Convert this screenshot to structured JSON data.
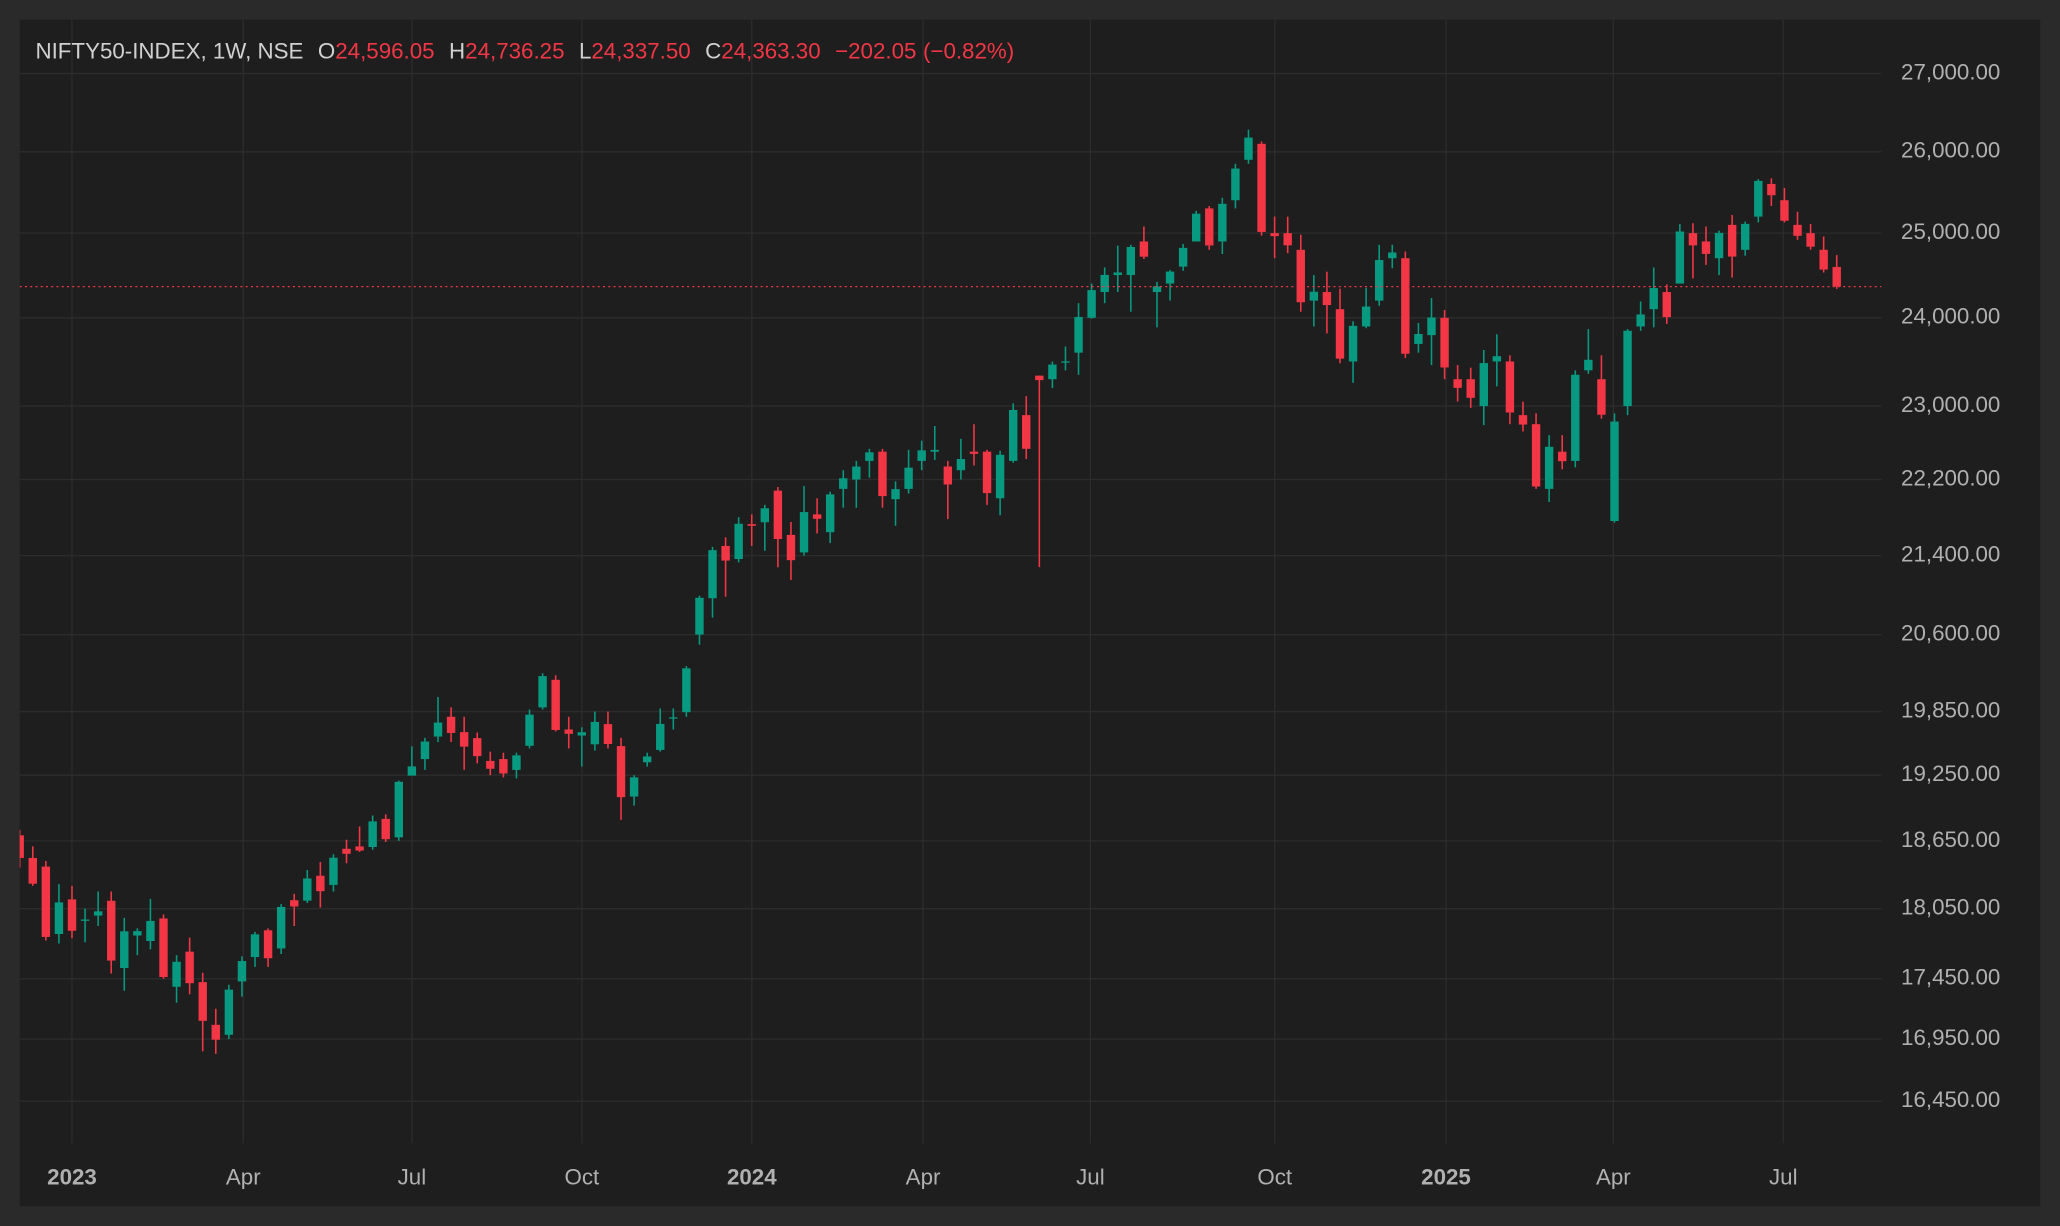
{
  "chart_data": {
    "type": "candlestick",
    "log_scale": true,
    "grid": true,
    "up_color": "#089981",
    "down_color": "#f23645",
    "legend": {
      "symbol": "NIFTY50-INDEX, 1W, NSE",
      "items": [
        {
          "key": "O",
          "value": 24596.05,
          "label": "24,596.05"
        },
        {
          "key": "H",
          "value": 24736.25,
          "label": "24,736.25"
        },
        {
          "key": "L",
          "value": 24337.5,
          "label": "24,337.50"
        },
        {
          "key": "C",
          "value": 24363.3,
          "label": "24,363.30"
        }
      ],
      "change": {
        "value": -202.05,
        "label": "−202.05"
      },
      "change_pct": {
        "value": -0.82,
        "label": "(−0.82%)"
      }
    },
    "ylim": [
      16120,
      27710
    ],
    "yticks": [
      {
        "value": 27000,
        "label": "27,000.00"
      },
      {
        "value": 26000,
        "label": "26,000.00"
      },
      {
        "value": 25000,
        "label": "25,000.00"
      },
      {
        "value": 24000,
        "label": "24,000.00"
      },
      {
        "value": 23000,
        "label": "23,000.00"
      },
      {
        "value": 22200,
        "label": "22,200.00"
      },
      {
        "value": 21400,
        "label": "21,400.00"
      },
      {
        "value": 20600,
        "label": "20,600.00"
      },
      {
        "value": 19850,
        "label": "19,850.00"
      },
      {
        "value": 19250,
        "label": "19,250.00"
      },
      {
        "value": 18650,
        "label": "18,650.00"
      },
      {
        "value": 18050,
        "label": "18,050.00"
      },
      {
        "value": 17450,
        "label": "17,450.00"
      },
      {
        "value": 16950,
        "label": "16,950.00"
      },
      {
        "value": 16450,
        "label": "16,450.00"
      }
    ],
    "xlim": [
      0,
      142.4
    ],
    "xticks": [
      {
        "value": 4.0,
        "label": "2023"
      },
      {
        "value": 17.1,
        "label": "Apr"
      },
      {
        "value": 30.0,
        "label": "Jul"
      },
      {
        "value": 43.0,
        "label": "Oct"
      },
      {
        "value": 56.0,
        "label": "2024"
      },
      {
        "value": 69.1,
        "label": "Apr"
      },
      {
        "value": 81.9,
        "label": "Jul"
      },
      {
        "value": 96.0,
        "label": "Oct"
      },
      {
        "value": 109.1,
        "label": "2025"
      },
      {
        "value": 121.9,
        "label": "Apr"
      },
      {
        "value": 134.9,
        "label": "Jul"
      }
    ],
    "open": [
      18700,
      18497,
      18420,
      17831,
      18131,
      17953,
      17990,
      18119,
      17541,
      17818,
      17771,
      17965,
      17383,
      17680,
      17422,
      17067,
      16985,
      17428,
      17634,
      17863,
      17707,
      18124,
      18120,
      18339,
      18258,
      18579,
      18600,
      18595,
      18849,
      18682,
      19246,
      19400,
      19612,
      19800,
      19654,
      19597,
      19383,
      19400,
      19299,
      19525,
      19890,
      20156,
      19679,
      19622,
      19539,
      19730,
      19522,
      19053,
      19370,
      19486,
      19784,
      19844,
      20601,
      20965,
      21500,
      21365,
      21727,
      21747,
      22081,
      21615,
      21433,
      21830,
      21643,
      22100,
      22200,
      22400,
      22500,
      21990,
      22100,
      22400,
      22500,
      22340,
      22300,
      22500,
      22500,
      22000,
      22400,
      22900,
      23340,
      23300,
      23500,
      23600,
      24000,
      24300,
      24500,
      24500,
      24900,
      24300,
      24400,
      24600,
      24900,
      25300,
      24900,
      25400,
      25900,
      26100,
      25000,
      25000,
      24800,
      24200,
      24300,
      24100,
      23500,
      23900,
      24200,
      24700,
      24700,
      23700,
      23800,
      24000,
      23300,
      23300,
      23000,
      23500,
      23500,
      22900,
      22800,
      22100,
      22500,
      22400,
      23400,
      23300,
      21760,
      23000,
      23900,
      24100,
      24300,
      24400,
      25000,
      24900,
      24700,
      25100,
      24800,
      25200,
      25600,
      25400,
      25100,
      25000,
      24800
    ],
    "high": [
      18750,
      18600,
      18470,
      18265,
      18250,
      18050,
      18200,
      18200,
      17970,
      17880,
      18135,
      18000,
      17650,
      17800,
      17500,
      17200,
      17400,
      17640,
      17850,
      17880,
      18090,
      18180,
      18390,
      18460,
      18530,
      18660,
      18780,
      18880,
      18890,
      19200,
      19520,
      19600,
      19990,
      19890,
      19800,
      19650,
      19470,
      19460,
      19460,
      19870,
      20220,
      20200,
      19800,
      19700,
      19850,
      19850,
      19600,
      19250,
      19460,
      19880,
      19880,
      20290,
      20990,
      21490,
      21590,
      21800,
      21830,
      21930,
      22120,
      21750,
      22130,
      22000,
      22070,
      22300,
      22400,
      22530,
      22530,
      22180,
      22520,
      22620,
      22780,
      22400,
      22640,
      22800,
      22520,
      22510,
      23030,
      23110,
      23340,
      23500,
      23670,
      24170,
      24400,
      24590,
      24850,
      24860,
      25080,
      24420,
      24560,
      24870,
      25270,
      25330,
      25430,
      25850,
      26280,
      26130,
      25200,
      25200,
      24980,
      24500,
      24540,
      24340,
      23960,
      24350,
      24860,
      24860,
      24780,
      23940,
      24230,
      24090,
      23460,
      23430,
      23630,
      23810,
      23570,
      23050,
      22920,
      22680,
      22680,
      23400,
      23870,
      23570,
      22920,
      23870,
      24190,
      24590,
      24390,
      25110,
      25120,
      25080,
      25030,
      25220,
      25140,
      25660,
      25670,
      25550,
      25260,
      25110,
      24960
    ],
    "low": [
      18410,
      18250,
      17775,
      17750,
      17795,
      17760,
      17900,
      17495,
      17350,
      17650,
      17700,
      17450,
      17250,
      17320,
      16850,
      16830,
      16950,
      17300,
      17550,
      17550,
      17660,
      17900,
      18100,
      18060,
      18200,
      18450,
      18550,
      18570,
      18640,
      18650,
      19250,
      19300,
      19560,
      19560,
      19300,
      19360,
      19250,
      19230,
      19220,
      19500,
      19870,
      19660,
      19500,
      19330,
      19480,
      19500,
      18840,
      18970,
      19330,
      19470,
      19680,
      19800,
      20500,
      20770,
      20980,
      21330,
      21500,
      21450,
      21280,
      21150,
      21400,
      21630,
      21530,
      21900,
      21900,
      22220,
      21900,
      21710,
      22050,
      22300,
      22410,
      21780,
      22200,
      22350,
      21930,
      21820,
      22380,
      22420,
      21281,
      23200,
      23400,
      23350,
      23990,
      24170,
      24300,
      24070,
      24690,
      23890,
      24200,
      24550,
      24900,
      24800,
      24750,
      25300,
      25850,
      24970,
      24700,
      24760,
      24070,
      23900,
      23820,
      23480,
      23260,
      23880,
      24140,
      24580,
      23540,
      23600,
      23460,
      23300,
      23050,
      22980,
      22790,
      23220,
      22800,
      22720,
      22100,
      21960,
      22310,
      22330,
      23360,
      22860,
      21743,
      22900,
      23850,
      23890,
      23930,
      24400,
      24460,
      24620,
      24500,
      24470,
      24730,
      25130,
      25330,
      25130,
      24920,
      24800,
      24530
    ],
    "close": [
      18497,
      18269,
      17806,
      18105,
      17859,
      17956,
      18027,
      17604,
      17854,
      17856,
      17944,
      17465,
      17594,
      17413,
      17100,
      16945,
      17359,
      17600,
      17828,
      17624,
      18065,
      18069,
      18315,
      18203,
      18499,
      18534,
      18563,
      18826,
      18665,
      19189,
      19332,
      19565,
      19745,
      19646,
      19517,
      19428,
      19310,
      19266,
      19435,
      19820,
      20192,
      19674,
      19638,
      19653,
      19751,
      19542,
      19047,
      19230,
      19425,
      19732,
      19795,
      20268,
      20969,
      21456,
      21349,
      21731,
      21710,
      21894,
      21572,
      21353,
      21854,
      21783,
      22041,
      22213,
      22339,
      22493,
      22023,
      22097,
      22327,
      22514,
      22519,
      22147,
      22420,
      22476,
      22055,
      22466,
      22957,
      22531,
      23290,
      23465,
      23501,
      24010,
      24323,
      24502,
      24531,
      24834,
      24718,
      24367,
      24541,
      24823,
      25236,
      24852,
      25356,
      25791,
      26179,
      25015,
      24964,
      24854,
      24181,
      24304,
      24148,
      23532,
      23907,
      24131,
      24678,
      24768,
      23588,
      23813,
      24004,
      23432,
      23203,
      23092,
      23482,
      23560,
      22929,
      22796,
      22125,
      22553,
      22397,
      23350,
      23519,
      22904,
      22829,
      23851,
      24039,
      24347,
      24008,
      25020,
      24853,
      24751,
      25003,
      24719,
      25112,
      25638,
      25461,
      25150,
      24968,
      24837,
      24565
    ]
  }
}
